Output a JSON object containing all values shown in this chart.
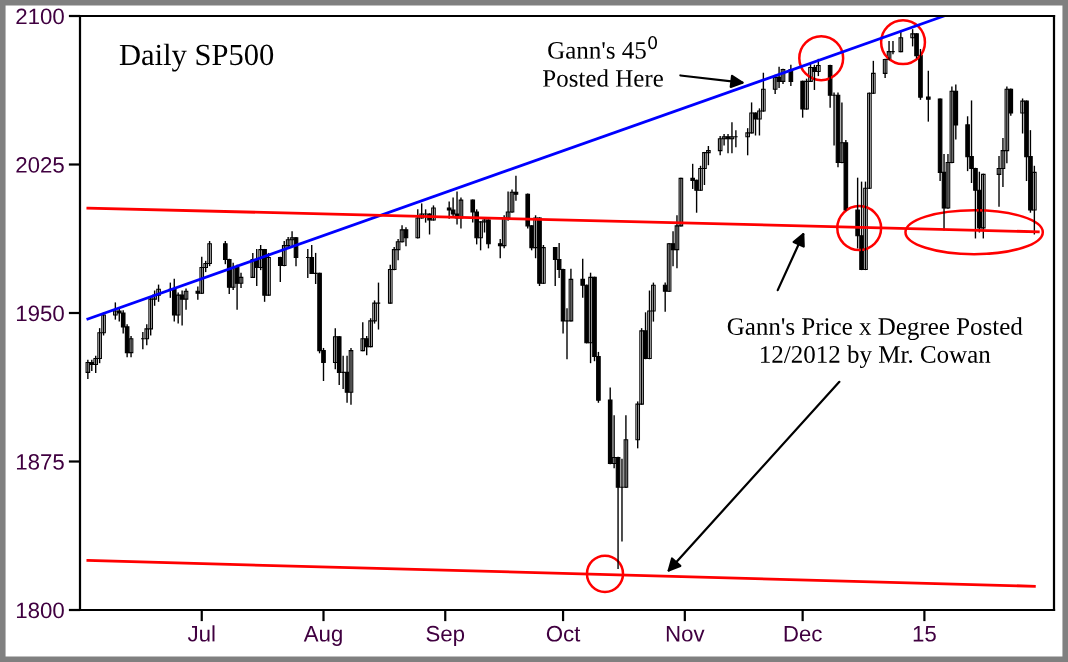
{
  "chart_data": {
    "type": "candlestick",
    "title": "Daily SP500",
    "x": [
      "2014-06-02",
      "2014-06-03",
      "2014-06-04",
      "2014-06-05",
      "2014-06-06",
      "2014-06-09",
      "2014-06-10",
      "2014-06-11",
      "2014-06-12",
      "2014-06-13",
      "2014-06-16",
      "2014-06-17",
      "2014-06-18",
      "2014-06-19",
      "2014-06-20",
      "2014-06-23",
      "2014-06-24",
      "2014-06-25",
      "2014-06-26",
      "2014-06-27",
      "2014-06-30",
      "2014-07-01",
      "2014-07-02",
      "2014-07-03",
      "2014-07-07",
      "2014-07-08",
      "2014-07-09",
      "2014-07-10",
      "2014-07-11",
      "2014-07-14",
      "2014-07-15",
      "2014-07-16",
      "2014-07-17",
      "2014-07-18",
      "2014-07-21",
      "2014-07-22",
      "2014-07-23",
      "2014-07-24",
      "2014-07-25",
      "2014-07-28",
      "2014-07-29",
      "2014-07-30",
      "2014-07-31",
      "2014-08-01",
      "2014-08-04",
      "2014-08-05",
      "2014-08-06",
      "2014-08-07",
      "2014-08-08",
      "2014-08-11",
      "2014-08-12",
      "2014-08-13",
      "2014-08-14",
      "2014-08-15",
      "2014-08-18",
      "2014-08-19",
      "2014-08-20",
      "2014-08-21",
      "2014-08-22",
      "2014-08-25",
      "2014-08-26",
      "2014-08-27",
      "2014-08-28",
      "2014-08-29",
      "2014-09-02",
      "2014-09-03",
      "2014-09-04",
      "2014-09-05",
      "2014-09-08",
      "2014-09-09",
      "2014-09-10",
      "2014-09-11",
      "2014-09-12",
      "2014-09-15",
      "2014-09-16",
      "2014-09-17",
      "2014-09-18",
      "2014-09-19",
      "2014-09-22",
      "2014-09-23",
      "2014-09-24",
      "2014-09-25",
      "2014-09-26",
      "2014-09-29",
      "2014-09-30",
      "2014-10-01",
      "2014-10-02",
      "2014-10-03",
      "2014-10-06",
      "2014-10-07",
      "2014-10-08",
      "2014-10-09",
      "2014-10-10",
      "2014-10-13",
      "2014-10-14",
      "2014-10-15",
      "2014-10-16",
      "2014-10-17",
      "2014-10-20",
      "2014-10-21",
      "2014-10-22",
      "2014-10-23",
      "2014-10-24",
      "2014-10-27",
      "2014-10-28",
      "2014-10-29",
      "2014-10-30",
      "2014-10-31",
      "2014-11-03",
      "2014-11-04",
      "2014-11-05",
      "2014-11-06",
      "2014-11-07",
      "2014-11-10",
      "2014-11-11",
      "2014-11-12",
      "2014-11-13",
      "2014-11-14",
      "2014-11-17",
      "2014-11-18",
      "2014-11-19",
      "2014-11-20",
      "2014-11-21",
      "2014-11-24",
      "2014-11-25",
      "2014-11-26",
      "2014-11-28",
      "2014-12-01",
      "2014-12-02",
      "2014-12-03",
      "2014-12-04",
      "2014-12-05",
      "2014-12-08",
      "2014-12-09",
      "2014-12-10",
      "2014-12-11",
      "2014-12-12",
      "2014-12-15",
      "2014-12-16",
      "2014-12-17",
      "2014-12-18",
      "2014-12-19",
      "2014-12-22",
      "2014-12-23",
      "2014-12-24",
      "2014-12-26",
      "2014-12-29",
      "2014-12-30",
      "2014-12-31",
      "2015-01-02",
      "2015-01-05",
      "2015-01-06",
      "2015-01-07",
      "2015-01-08",
      "2015-01-09",
      "2015-01-12",
      "2015-01-13",
      "2015-01-14",
      "2015-01-15",
      "2015-01-16",
      "2015-01-20",
      "2015-01-21",
      "2015-01-22",
      "2015-01-23",
      "2015-01-26",
      "2015-01-27",
      "2015-01-28",
      "2015-01-29"
    ],
    "ohlc": [
      [
        1920,
        1926,
        1917,
        1925
      ],
      [
        1925,
        1926,
        1921,
        1924
      ],
      [
        1924,
        1928,
        1920,
        1927
      ],
      [
        1927,
        1942,
        1925,
        1940
      ],
      [
        1940,
        1950,
        1939,
        1949
      ],
      [
        1949,
        1955,
        1947,
        1951
      ],
      [
        1951,
        1952,
        1946,
        1950
      ],
      [
        1950,
        1951,
        1940,
        1943
      ],
      [
        1943,
        1944,
        1928,
        1930
      ],
      [
        1930,
        1938,
        1928,
        1937
      ],
      [
        1937,
        1940,
        1932,
        1937
      ],
      [
        1937,
        1944,
        1934,
        1942
      ],
      [
        1942,
        1958,
        1939,
        1957
      ],
      [
        1957,
        1961,
        1954,
        1959
      ],
      [
        1959,
        1964,
        1956,
        1962
      ],
      [
        1962,
        1965,
        1958,
        1962
      ],
      [
        1962,
        1967,
        1946,
        1949
      ],
      [
        1949,
        1960,
        1945,
        1959
      ],
      [
        1959,
        1961,
        1944,
        1957
      ],
      [
        1957,
        1962,
        1952,
        1961
      ],
      [
        1961,
        1963,
        1957,
        1960
      ],
      [
        1960,
        1978,
        1960,
        1973
      ],
      [
        1973,
        1976,
        1971,
        1975
      ],
      [
        1975,
        1986,
        1974,
        1985
      ],
      [
        1985,
        1986,
        1975,
        1977
      ],
      [
        1977,
        1977,
        1960,
        1963
      ],
      [
        1963,
        1975,
        1962,
        1973
      ],
      [
        1973,
        1974,
        1952,
        1965
      ],
      [
        1965,
        1970,
        1963,
        1968
      ],
      [
        1968,
        1980,
        1968,
        1977
      ],
      [
        1977,
        1982,
        1964,
        1973
      ],
      [
        1973,
        1984,
        1972,
        1982
      ],
      [
        1982,
        1982,
        1956,
        1959
      ],
      [
        1959,
        1980,
        1959,
        1978
      ],
      [
        1978,
        1978,
        1966,
        1974
      ],
      [
        1974,
        1986,
        1974,
        1984
      ],
      [
        1984,
        1988,
        1983,
        1987
      ],
      [
        1987,
        1991,
        1984,
        1988
      ],
      [
        1988,
        1988,
        1974,
        1978
      ],
      [
        1978,
        1982,
        1968,
        1978
      ],
      [
        1978,
        1984,
        1970,
        1970
      ],
      [
        1970,
        1980,
        1965,
        1970
      ],
      [
        1970,
        1970,
        1930,
        1931
      ],
      [
        1931,
        1932,
        1916,
        1925
      ],
      [
        1925,
        1942,
        1922,
        1938
      ],
      [
        1938,
        1938,
        1914,
        1920
      ],
      [
        1920,
        1928,
        1912,
        1920
      ],
      [
        1920,
        1928,
        1905,
        1910
      ],
      [
        1910,
        1932,
        1904,
        1931
      ],
      [
        1931,
        1945,
        1931,
        1937
      ],
      [
        1937,
        1938,
        1929,
        1933
      ],
      [
        1933,
        1947,
        1933,
        1946
      ],
      [
        1946,
        1956,
        1945,
        1955
      ],
      [
        1955,
        1965,
        1942,
        1955
      ],
      [
        1955,
        1974,
        1955,
        1972
      ],
      [
        1972,
        1983,
        1972,
        1982
      ],
      [
        1982,
        1987,
        1977,
        1986
      ],
      [
        1986,
        1994,
        1986,
        1992
      ],
      [
        1992,
        1993,
        1984,
        1988
      ],
      [
        1988,
        2002,
        1988,
        1998
      ],
      [
        1998,
        2005,
        1998,
        2000
      ],
      [
        2000,
        2002,
        1996,
        2000
      ],
      [
        2000,
        2000,
        1990,
        1997
      ],
      [
        1997,
        2004,
        1997,
        2003
      ],
      [
        2003,
        2006,
        1998,
        2002
      ],
      [
        2002,
        2008,
        1999,
        2000
      ],
      [
        2000,
        2011,
        1995,
        1998
      ],
      [
        1998,
        2008,
        1993,
        2007
      ],
      [
        2007,
        2007,
        1996,
        2001
      ],
      [
        2001,
        2002,
        1985,
        1988
      ],
      [
        1988,
        1996,
        1982,
        1996
      ],
      [
        1996,
        1998,
        1991,
        1997
      ],
      [
        1997,
        1997,
        1983,
        1985
      ],
      [
        1985,
        1987,
        1978,
        1984
      ],
      [
        1984,
        1999,
        1983,
        1998
      ],
      [
        1998,
        2011,
        1997,
        2001
      ],
      [
        2001,
        2012,
        2001,
        2011
      ],
      [
        2011,
        2019,
        2007,
        2010
      ],
      [
        2010,
        2010,
        1993,
        1994
      ],
      [
        1994,
        1994,
        1982,
        1983
      ],
      [
        1983,
        1999,
        1978,
        1998
      ],
      [
        1998,
        1998,
        1964,
        1965
      ],
      [
        1965,
        1984,
        1965,
        1983
      ],
      [
        1983,
        1983,
        1964,
        1977
      ],
      [
        1977,
        1985,
        1968,
        1972
      ],
      [
        1972,
        1972,
        1940,
        1946
      ],
      [
        1946,
        1952,
        1927,
        1946
      ],
      [
        1946,
        1972,
        1946,
        1967
      ],
      [
        1967,
        1977,
        1958,
        1964
      ],
      [
        1964,
        1964,
        1935,
        1935
      ],
      [
        1935,
        1970,
        1925,
        1968
      ],
      [
        1968,
        1968,
        1926,
        1928
      ],
      [
        1928,
        1930,
        1905,
        1906
      ],
      [
        1906,
        1912,
        1874,
        1874
      ],
      [
        1874,
        1898,
        1872,
        1877
      ],
      [
        1877,
        1877,
        1821,
        1862
      ],
      [
        1862,
        1876,
        1835,
        1862
      ],
      [
        1862,
        1898,
        1862,
        1886
      ],
      [
        1886,
        1905,
        1882,
        1904
      ],
      [
        1904,
        1942,
        1904,
        1941
      ],
      [
        1941,
        1950,
        1927,
        1927
      ],
      [
        1927,
        1961,
        1927,
        1951
      ],
      [
        1951,
        1965,
        1946,
        1964
      ],
      [
        1964,
        1965,
        1951,
        1961
      ],
      [
        1961,
        1985,
        1961,
        1985
      ],
      [
        1985,
        1991,
        1974,
        1982
      ],
      [
        1982,
        1999,
        1973,
        1994
      ],
      [
        1994,
        2018,
        1994,
        2018
      ],
      [
        2018,
        2025,
        2013,
        2017
      ],
      [
        2017,
        2017,
        2001,
        2012
      ],
      [
        2012,
        2024,
        2012,
        2023
      ],
      [
        2023,
        2031,
        2015,
        2031
      ],
      [
        2031,
        2034,
        2025,
        2032
      ],
      [
        2032,
        2039,
        2030,
        2038
      ],
      [
        2038,
        2040,
        2035,
        2039
      ],
      [
        2039,
        2040,
        2031,
        2038
      ],
      [
        2038,
        2046,
        2031,
        2039
      ],
      [
        2039,
        2042,
        2034,
        2039
      ],
      [
        2039,
        2043,
        2030,
        2041
      ],
      [
        2041,
        2056,
        2041,
        2051
      ],
      [
        2051,
        2051,
        2040,
        2048
      ],
      [
        2048,
        2053,
        2040,
        2052
      ],
      [
        2052,
        2071,
        2052,
        2063
      ],
      [
        2063,
        2070,
        2061,
        2069
      ],
      [
        2069,
        2074,
        2064,
        2067
      ],
      [
        2067,
        2073,
        2066,
        2073
      ],
      [
        2073,
        2075,
        2065,
        2067
      ],
      [
        2067,
        2067,
        2049,
        2053
      ],
      [
        2053,
        2068,
        2053,
        2067
      ],
      [
        2067,
        2076,
        2067,
        2074
      ],
      [
        2074,
        2075,
        2063,
        2072
      ],
      [
        2072,
        2078,
        2070,
        2075
      ],
      [
        2075,
        2075,
        2054,
        2060
      ],
      [
        2060,
        2061,
        2035,
        2060
      ],
      [
        2060,
        2061,
        2024,
        2026
      ],
      [
        2026,
        2056,
        2026,
        2036
      ],
      [
        2036,
        2037,
        2002,
        2002
      ],
      [
        2002,
        2018,
        1983,
        1989
      ],
      [
        1989,
        2016,
        1972,
        1972
      ],
      [
        1972,
        2016,
        1972,
        2013
      ],
      [
        2013,
        2061,
        2013,
        2061
      ],
      [
        2061,
        2077,
        2061,
        2071
      ],
      [
        2071,
        2078,
        2069,
        2078
      ],
      [
        2078,
        2087,
        2078,
        2082
      ],
      [
        2082,
        2087,
        2081,
        2082
      ],
      [
        2082,
        2092,
        2082,
        2089
      ],
      [
        2089,
        2093,
        2085,
        2091
      ],
      [
        2091,
        2091,
        2079,
        2080
      ],
      [
        2080,
        2083,
        2058,
        2059
      ],
      [
        2059,
        2072,
        2047,
        2058
      ],
      [
        2058,
        2058,
        2017,
        2021
      ],
      [
        2021,
        2030,
        1992,
        2003
      ],
      [
        2003,
        2030,
        2003,
        2026
      ],
      [
        2026,
        2064,
        2026,
        2062
      ],
      [
        2062,
        2065,
        2038,
        2045
      ],
      [
        2045,
        2049,
        2022,
        2029
      ],
      [
        2029,
        2057,
        2016,
        2023
      ],
      [
        2023,
        2023,
        1988,
        2012
      ],
      [
        2012,
        2021,
        1991,
        1993
      ],
      [
        1993,
        2020,
        1988,
        2020
      ],
      [
        2020,
        2029,
        2004,
        2023
      ],
      [
        2023,
        2038,
        2014,
        2032
      ],
      [
        2032,
        2064,
        2026,
        2063
      ],
      [
        2063,
        2063,
        2050,
        2051
      ],
      [
        2051,
        2058,
        2041,
        2057
      ],
      [
        2057,
        2057,
        2017,
        2029
      ],
      [
        2029,
        2042,
        2001,
        2002
      ],
      [
        2002,
        2024,
        1990,
        2021
      ]
    ],
    "color": "#000000",
    "series": [
      {
        "type": "line",
        "color": "#0000ff",
        "x": [
          "2014-06-02",
          "2015-01-06"
        ],
        "values": [
          1947,
          2100
        ]
      },
      {
        "type": "line",
        "color": "#ff0000",
        "x": [
          "2014-06-02",
          "2015-01-30"
        ],
        "values": [
          2003,
          1991
        ]
      },
      {
        "type": "line",
        "color": "#ff0000",
        "x": [
          "2014-06-02",
          "2015-01-29"
        ],
        "values": [
          1825,
          1812
        ]
      }
    ],
    "annotations": [
      {
        "text": "Gann's 45$^{0}$\nPosted Here",
        "x": "2014-11-17",
        "y": 2066
      },
      {
        "text": "Gann's Price x Degree Posted\n12/2012 by Mr. Cowan",
        "x": "2014-10-27",
        "y": 1818
      }
    ],
    "xlim": [
      "2014-05-31",
      "2015-02-03"
    ],
    "xticks": [
      {
        "value": "2014-07-01",
        "label": "Jul"
      },
      {
        "value": "2014-08-01",
        "label": "Aug"
      },
      {
        "value": "2014-09-01",
        "label": "Sep"
      },
      {
        "value": "2014-10-01",
        "label": "Oct"
      },
      {
        "value": "2014-11-01",
        "label": "Nov"
      },
      {
        "value": "2014-12-01",
        "label": "Dec"
      },
      {
        "value": "2015-01-01",
        "label": "15"
      }
    ],
    "ylim": [
      1800,
      2100
    ],
    "yticks": [
      1800,
      1875,
      1950,
      2025,
      2100
    ],
    "grid": false,
    "legend": false
  }
}
